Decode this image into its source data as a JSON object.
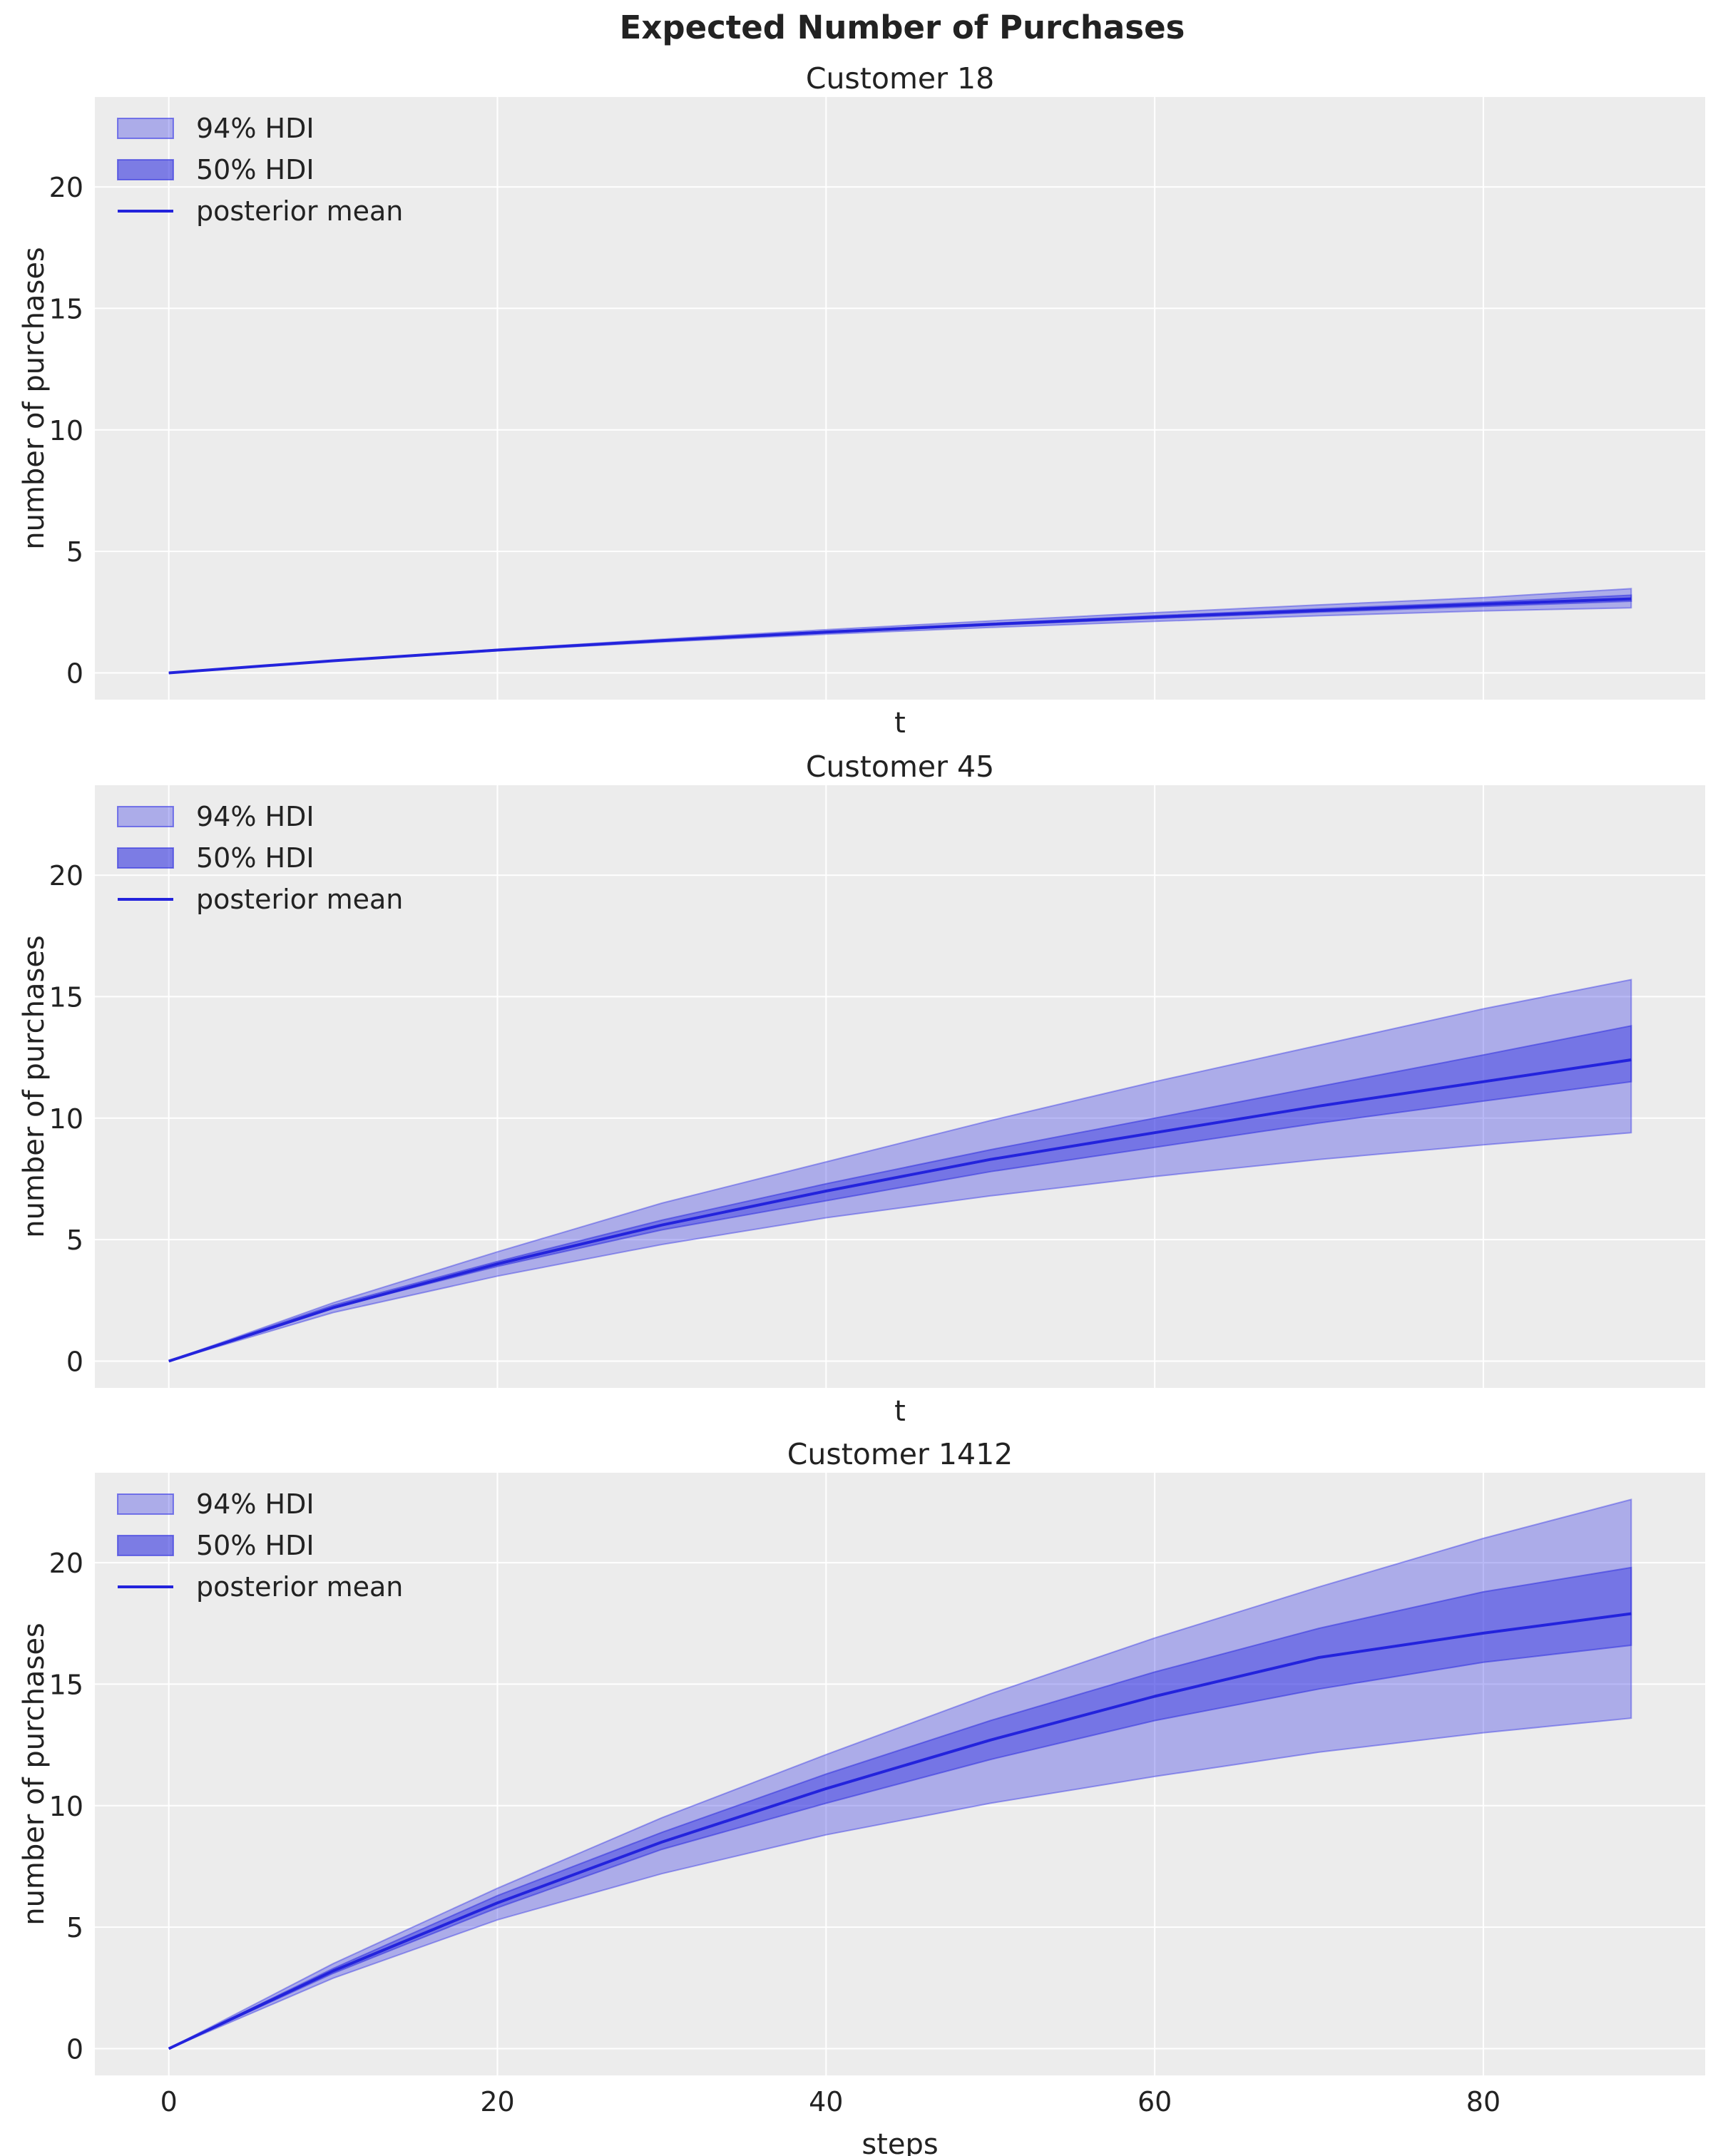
{
  "figure": {
    "suptitle": "Expected Number of Purchases"
  },
  "colors": {
    "axes_bg": "#ececec",
    "grid": "#ffffff",
    "band_94": "#3737e6",
    "band_94_opacity": 0.35,
    "band_50": "#3232e0",
    "band_50_opacity": 0.45,
    "line": "#2323dc",
    "text": "#222222"
  },
  "legend_entries": [
    "94% HDI",
    "50% HDI",
    "posterior mean"
  ],
  "chart_data": [
    {
      "type": "area",
      "title": "Customer 18",
      "xlabel": "t",
      "ylabel": "number of purchases",
      "legend": "upper-left",
      "grid": true,
      "show_xticklabels": false,
      "xlim": [
        -4.5,
        93.5
      ],
      "ylim": [
        -1.1,
        23.7
      ],
      "xticks": [
        0,
        20,
        40,
        60,
        80
      ],
      "yticks": [
        0,
        5,
        10,
        15,
        20
      ],
      "x": [
        0,
        10,
        20,
        30,
        40,
        50,
        60,
        70,
        80,
        89
      ],
      "series": [
        {
          "name": "94% HDI",
          "lower": [
            0,
            0.49,
            0.91,
            1.27,
            1.59,
            1.87,
            2.12,
            2.35,
            2.55,
            2.68
          ],
          "upper": [
            0,
            0.51,
            0.97,
            1.39,
            1.78,
            2.14,
            2.48,
            2.8,
            3.1,
            3.47
          ]
        },
        {
          "name": "50% HDI",
          "lower": [
            0,
            0.5,
            0.93,
            1.31,
            1.65,
            1.96,
            2.24,
            2.5,
            2.74,
            2.95
          ],
          "upper": [
            0,
            0.5,
            0.95,
            1.35,
            1.71,
            2.04,
            2.35,
            2.64,
            2.91,
            3.2
          ]
        },
        {
          "name": "posterior mean",
          "values": [
            0,
            0.5,
            0.94,
            1.33,
            1.68,
            2.0,
            2.3,
            2.57,
            2.83,
            3.05
          ]
        }
      ]
    },
    {
      "type": "area",
      "title": "Customer 45",
      "xlabel": "t",
      "ylabel": "number of purchases",
      "legend": "upper-left",
      "grid": true,
      "show_xticklabels": false,
      "xlim": [
        -4.5,
        93.5
      ],
      "ylim": [
        -1.1,
        23.7
      ],
      "xticks": [
        0,
        20,
        40,
        60,
        80
      ],
      "yticks": [
        0,
        5,
        10,
        15,
        20
      ],
      "x": [
        0,
        10,
        20,
        30,
        40,
        50,
        60,
        70,
        80,
        89
      ],
      "series": [
        {
          "name": "94% HDI",
          "lower": [
            0,
            2.0,
            3.5,
            4.8,
            5.9,
            6.8,
            7.6,
            8.3,
            8.9,
            9.4
          ],
          "upper": [
            0,
            2.4,
            4.5,
            6.5,
            8.2,
            9.9,
            11.5,
            13.0,
            14.5,
            15.7
          ]
        },
        {
          "name": "50% HDI",
          "lower": [
            0,
            2.2,
            3.9,
            5.4,
            6.6,
            7.8,
            8.8,
            9.8,
            10.7,
            11.5
          ],
          "upper": [
            0,
            2.3,
            4.1,
            5.8,
            7.3,
            8.7,
            10.0,
            11.3,
            12.6,
            13.8
          ]
        },
        {
          "name": "posterior mean",
          "values": [
            0,
            2.2,
            4.0,
            5.6,
            7.0,
            8.3,
            9.4,
            10.5,
            11.5,
            12.4
          ]
        }
      ]
    },
    {
      "type": "area",
      "title": "Customer 1412",
      "xlabel": "steps",
      "ylabel": "number of purchases",
      "legend": "upper-left",
      "grid": true,
      "show_xticklabels": true,
      "xlim": [
        -4.5,
        93.5
      ],
      "ylim": [
        -1.1,
        23.7
      ],
      "xticks": [
        0,
        20,
        40,
        60,
        80
      ],
      "yticks": [
        0,
        5,
        10,
        15,
        20
      ],
      "x": [
        0,
        10,
        20,
        30,
        40,
        50,
        60,
        70,
        80,
        89
      ],
      "series": [
        {
          "name": "94% HDI",
          "lower": [
            0,
            2.9,
            5.3,
            7.2,
            8.8,
            10.1,
            11.2,
            12.2,
            13.0,
            13.6
          ],
          "upper": [
            0,
            3.5,
            6.6,
            9.5,
            12.1,
            14.6,
            16.9,
            19.0,
            21.0,
            22.6
          ]
        },
        {
          "name": "50% HDI",
          "lower": [
            0,
            3.1,
            5.8,
            8.2,
            10.1,
            11.9,
            13.5,
            14.8,
            15.9,
            16.6
          ],
          "upper": [
            0,
            3.3,
            6.3,
            8.9,
            11.3,
            13.5,
            15.5,
            17.3,
            18.8,
            19.8
          ]
        },
        {
          "name": "posterior mean",
          "values": [
            0,
            3.2,
            6.0,
            8.5,
            10.7,
            12.7,
            14.5,
            16.1,
            17.1,
            17.9
          ]
        }
      ]
    }
  ]
}
